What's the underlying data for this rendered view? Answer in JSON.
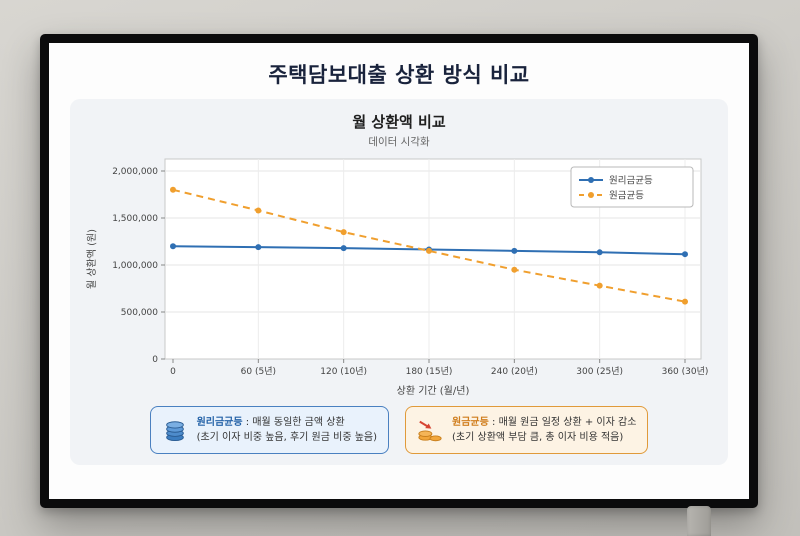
{
  "slide": {
    "title": "주택담보대출 상환 방식 비교"
  },
  "chart_data": {
    "type": "line",
    "title": "월 상환액 비교",
    "subtitle": "데이터 시각화",
    "xlabel": "상환 기간 (월/년)",
    "ylabel": "월 상환액 (원)",
    "x": [
      0,
      60,
      120,
      180,
      240,
      300,
      360
    ],
    "x_tick_labels": [
      "0",
      "60 (5년)",
      "120 (10년)",
      "180 (15년)",
      "240 (20년)",
      "300 (25년)",
      "360 (30년)"
    ],
    "ylim": [
      0,
      2000000
    ],
    "y_ticks": [
      0,
      500000,
      1000000,
      1500000,
      2000000
    ],
    "y_tick_labels": [
      "0",
      "500,000",
      "1,000,000",
      "1,500,000",
      "2,000,000"
    ],
    "grid": true,
    "legend_position": "top-right",
    "series": [
      {
        "name": "원리금균등",
        "color": "#2f6fb3",
        "style": "solid",
        "marker": "circle",
        "values": [
          1200000,
          1190000,
          1180000,
          1165000,
          1150000,
          1135000,
          1115000
        ]
      },
      {
        "name": "원금균등",
        "color": "#f09f2e",
        "style": "dashed",
        "marker": "circle",
        "values": [
          1800000,
          1580000,
          1350000,
          1150000,
          950000,
          780000,
          610000
        ]
      }
    ]
  },
  "info_boxes": [
    {
      "accent": "#2563a8",
      "bg": "#e9f2fc",
      "icon": "coin-stack-icon",
      "title": "원리금균등",
      "line1": ": 매월 동일한 금액 상환",
      "line2": "(초기 이자 비중 높음, 후기 원금 비중 높음)"
    },
    {
      "accent": "#d07e1e",
      "bg": "#fdf3e4",
      "icon": "coin-decrease-icon",
      "title": "원금균등",
      "line1": ": 매월 원금 일정 상환 + 이자 감소",
      "line2": "(초기 상환액 부담 큼, 총 이자 비용 적음)"
    }
  ]
}
